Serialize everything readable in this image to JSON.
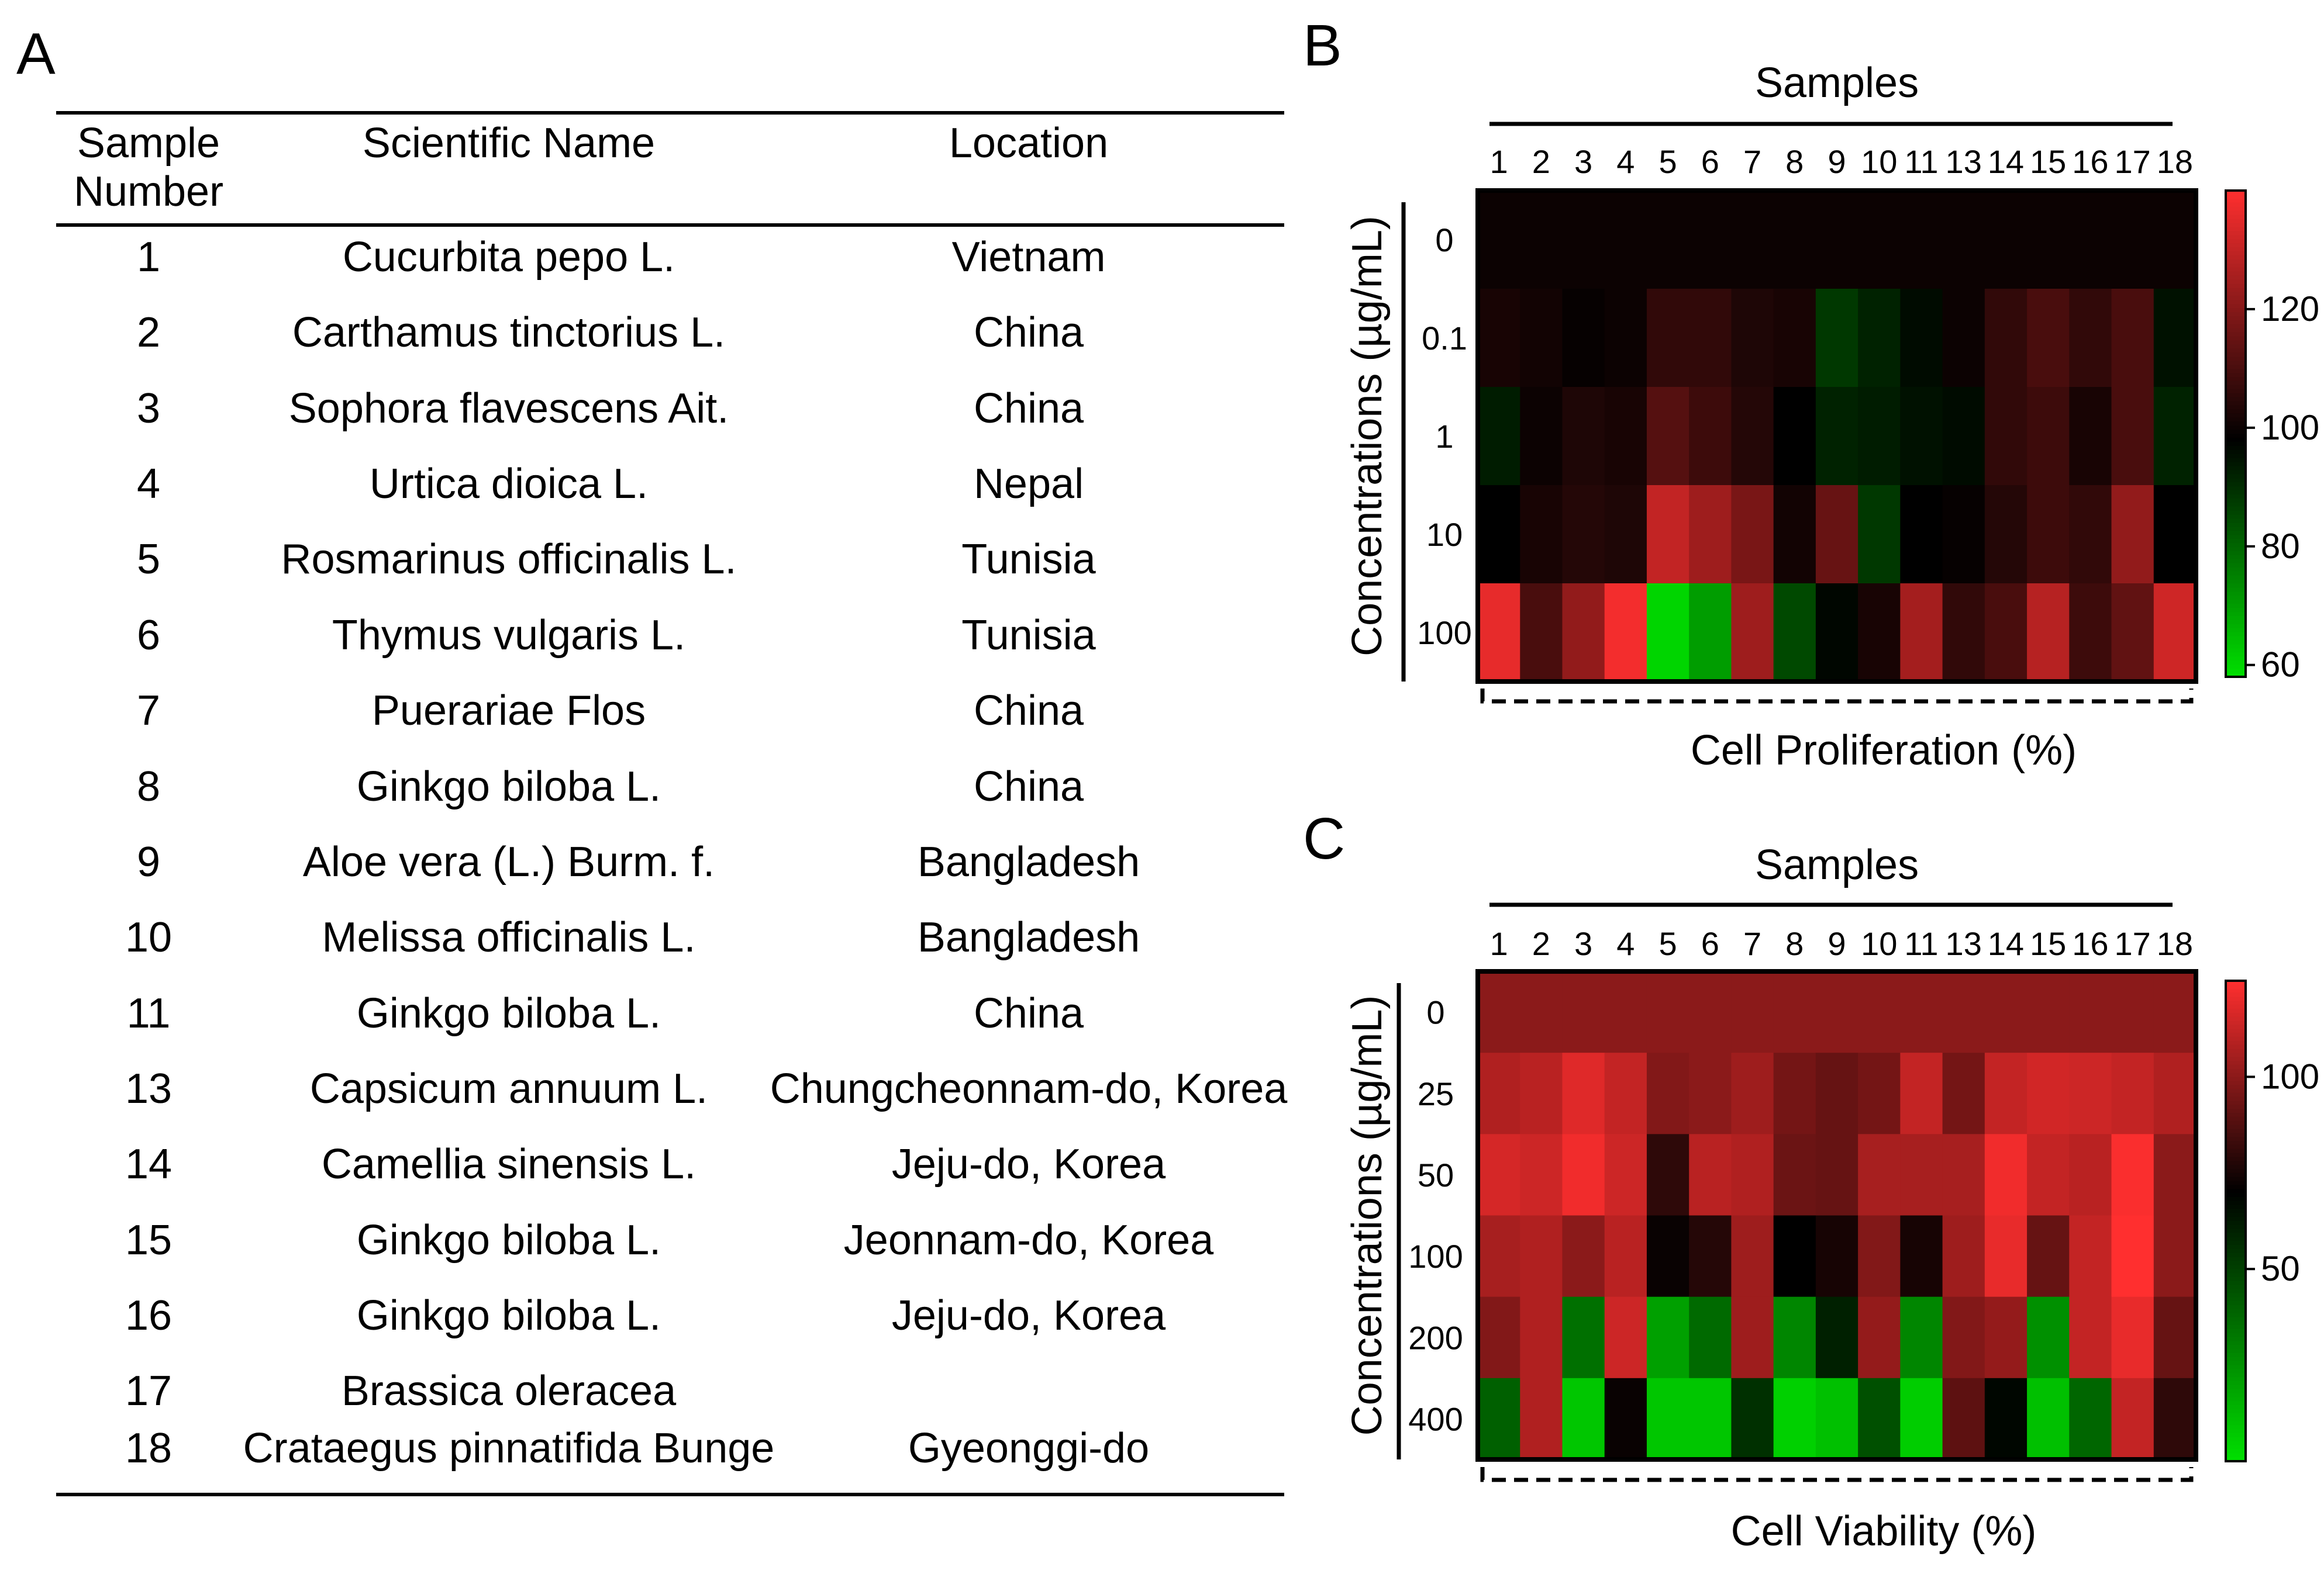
{
  "panels": {
    "a": "A",
    "b": "B",
    "c": "C"
  },
  "table": {
    "headers": {
      "sample_number": "Sample\nNumber",
      "scientific_name": "Scientific Name",
      "location": "Location"
    },
    "rows": [
      {
        "number": "1",
        "name": "Cucurbita pepo L.",
        "location": "Vietnam"
      },
      {
        "number": "2",
        "name": "Carthamus tinctorius L.",
        "location": "China"
      },
      {
        "number": "3",
        "name": "Sophora flavescens Ait.",
        "location": "China"
      },
      {
        "number": "4",
        "name": "Urtica dioica L.",
        "location": "Nepal"
      },
      {
        "number": "5",
        "name": "Rosmarinus officinalis L.",
        "location": "Tunisia"
      },
      {
        "number": "6",
        "name": "Thymus vulgaris L.",
        "location": "Tunisia"
      },
      {
        "number": "7",
        "name": "Puerariae Flos",
        "location": "China"
      },
      {
        "number": "8",
        "name": "Ginkgo biloba L.",
        "location": "China"
      },
      {
        "number": "9",
        "name": "Aloe vera (L.) Burm. f.",
        "location": "Bangladesh"
      },
      {
        "number": "10",
        "name": "Melissa officinalis L.",
        "location": "Bangladesh"
      },
      {
        "number": "11",
        "name": "Ginkgo biloba L.",
        "location": "China"
      },
      {
        "number": "13",
        "name": "Capsicum annuum L.",
        "location": "Chungcheonnam-do, Korea"
      },
      {
        "number": "14",
        "name": "Camellia sinensis L.",
        "location": "Jeju-do, Korea"
      },
      {
        "number": "15",
        "name": "Ginkgo biloba L.",
        "location": "Jeonnam-do, Korea"
      },
      {
        "number": "16",
        "name": "Ginkgo biloba L.",
        "location": "Jeju-do, Korea"
      },
      {
        "number": "17",
        "name": "Brassica oleracea",
        "location": ""
      },
      {
        "number": "18",
        "name": "Crataegus pinnatifida Bunge",
        "location": "Gyeonggi-do"
      }
    ]
  },
  "chart_data": [
    {
      "type": "heatmap",
      "panel": "B",
      "title": "Samples",
      "xlabel": "Cell Proliferation (%)",
      "ylabel": "Concentrations (µg/mL)",
      "x": [
        "1",
        "2",
        "3",
        "4",
        "5",
        "6",
        "7",
        "8",
        "9",
        "10",
        "11",
        "13",
        "14",
        "15",
        "16",
        "17",
        "18"
      ],
      "y": [
        "0",
        "0.1",
        "1",
        "10",
        "100"
      ],
      "values": [
        [
          100,
          100,
          100,
          100,
          100,
          100,
          100,
          100,
          100,
          100,
          100,
          100,
          100,
          100,
          100,
          100,
          100
        ],
        [
          102,
          101,
          99,
          100,
          106,
          106,
          103,
          102,
          88,
          92,
          96,
          100,
          106,
          110,
          106,
          110,
          95
        ],
        [
          93,
          100,
          103,
          102,
          112,
          108,
          104,
          98,
          92,
          93,
          95,
          96,
          106,
          108,
          102,
          110,
          92
        ],
        [
          98,
          102,
          104,
          103,
          130,
          124,
          118,
          101,
          115,
          88,
          98,
          99,
          104,
          108,
          106,
          122,
          98
        ],
        [
          136,
          110,
          122,
          138,
          60,
          70,
          124,
          85,
          97,
          102,
          125,
          106,
          110,
          128,
          108,
          114,
          132
        ]
      ],
      "scale": {
        "min": 58,
        "max": 140,
        "mid": 98,
        "ticks": [
          60,
          80,
          100,
          120
        ]
      }
    },
    {
      "type": "heatmap",
      "panel": "C",
      "title": "Samples",
      "xlabel": "Cell Viability (%)",
      "ylabel": "Concentrations (µg/mL)",
      "x": [
        "1",
        "2",
        "3",
        "4",
        "5",
        "6",
        "7",
        "8",
        "9",
        "10",
        "11",
        "13",
        "14",
        "15",
        "16",
        "17",
        "18"
      ],
      "y": [
        "0",
        "25",
        "50",
        "100",
        "200",
        "400"
      ],
      "values": [
        [
          100,
          100,
          100,
          100,
          100,
          100,
          100,
          100,
          100,
          100,
          100,
          100,
          100,
          100,
          100,
          100,
          100
        ],
        [
          108,
          110,
          118,
          112,
          98,
          100,
          104,
          95,
          92,
          95,
          112,
          95,
          112,
          115,
          114,
          112,
          108
        ],
        [
          116,
          114,
          122,
          114,
          80,
          110,
          108,
          93,
          92,
          106,
          106,
          106,
          122,
          112,
          110,
          124,
          100
        ],
        [
          106,
          108,
          100,
          110,
          72,
          78,
          104,
          70,
          75,
          98,
          75,
          104,
          120,
          92,
          112,
          125,
          100
        ],
        [
          98,
          108,
          35,
          114,
          20,
          37,
          104,
          28,
          60,
          102,
          28,
          98,
          102,
          25,
          112,
          120,
          92
        ],
        [
          40,
          108,
          8,
          72,
          8,
          8,
          55,
          5,
          10,
          45,
          6,
          90,
          68,
          10,
          38,
          112,
          80
        ]
      ],
      "scale": {
        "min": 0,
        "max": 125,
        "mid": 70,
        "ticks": [
          50,
          100
        ]
      }
    }
  ],
  "colors": {
    "green": "#00e000",
    "black": "#000000",
    "red": "#ff2f2f"
  }
}
